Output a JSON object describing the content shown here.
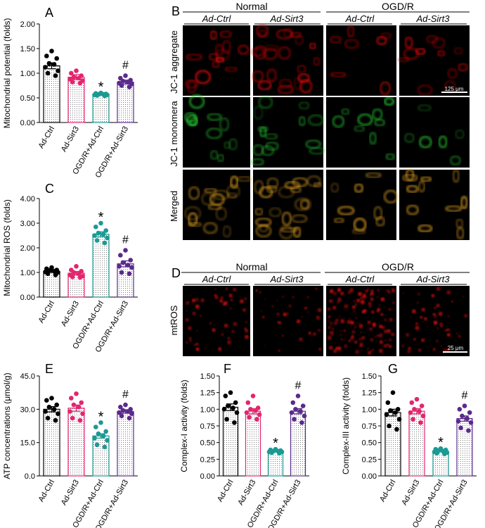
{
  "groups": [
    "Ad-Ctrl",
    "Ad-Sirt3",
    "OGD/R+Ad-Ctrl",
    "OGD/R+Ad-Sirt3"
  ],
  "colors": {
    "black": "#000000",
    "pink": "#e2266e",
    "teal": "#1b9a94",
    "purple": "#5b2a8c",
    "red": "#e01010",
    "green": "#28c830"
  },
  "chart_data": [
    {
      "type": "bar",
      "letter": "A",
      "ylabel": "Mitochondrial potential (folds)",
      "ylim": [
        0,
        2
      ],
      "yticks": [
        0,
        0.5,
        1.0,
        1.5,
        2.0
      ],
      "tick_labels": [
        "0.00",
        "0.50",
        "1.00",
        "1.50",
        "2.00"
      ],
      "categories": [
        "Ad-Ctrl",
        "Ad-Sirt3",
        "OGD/R+Ad-Ctrl",
        "OGD/R+Ad-Sirt3"
      ],
      "values": [
        1.15,
        0.92,
        0.57,
        0.82
      ],
      "errors": [
        0.06,
        0.05,
        0.02,
        0.04
      ],
      "points": [
        [
          1.45,
          1.35,
          1.3,
          1.2,
          1.18,
          1.12,
          1.05,
          1.0,
          0.95
        ],
        [
          1.05,
          1.0,
          0.95,
          0.92,
          0.9,
          0.88,
          0.85,
          0.82,
          0.8
        ],
        [
          0.6,
          0.59,
          0.58,
          0.57,
          0.57,
          0.56,
          0.56,
          0.55,
          0.54
        ],
        [
          0.95,
          0.9,
          0.86,
          0.84,
          0.82,
          0.8,
          0.78,
          0.75,
          0.72
        ]
      ],
      "annotations": [
        "",
        "",
        "*",
        "#"
      ]
    },
    {
      "type": "bar",
      "letter": "C",
      "ylabel": "Mitochondrial ROS (folds)",
      "ylim": [
        0,
        4
      ],
      "yticks": [
        0,
        1,
        2,
        3,
        4
      ],
      "tick_labels": [
        "0.00",
        "1.00",
        "2.00",
        "3.00",
        "4.00"
      ],
      "categories": [
        "Ad-Ctrl",
        "Ad-Sirt3",
        "OGD/R+Ad-Ctrl",
        "OGD/R+Ad-Sirt3"
      ],
      "values": [
        1.05,
        0.97,
        2.55,
        1.35
      ],
      "errors": [
        0.05,
        0.07,
        0.1,
        0.12
      ],
      "points": [
        [
          1.2,
          1.15,
          1.1,
          1.08,
          1.05,
          1.02,
          1.0,
          0.95,
          0.9
        ],
        [
          1.25,
          1.1,
          1.05,
          1.0,
          0.95,
          0.9,
          0.85,
          0.82,
          0.8
        ],
        [
          3.0,
          2.85,
          2.7,
          2.6,
          2.55,
          2.5,
          2.4,
          2.3,
          2.2
        ],
        [
          1.9,
          1.7,
          1.5,
          1.4,
          1.3,
          1.25,
          1.2,
          1.0,
          0.95
        ]
      ],
      "annotations": [
        "",
        "",
        "*",
        "#"
      ]
    },
    {
      "type": "bar",
      "letter": "E",
      "ylabel": "ATP concentrations (μmol/g)",
      "ylim": [
        0,
        45
      ],
      "yticks": [
        0,
        15,
        30,
        45
      ],
      "tick_labels": [
        "0.0",
        "15.0",
        "30.0",
        "45.0"
      ],
      "categories": [
        "Ad-Ctrl",
        "Ad-Sirt3",
        "OGD/R+Ad-Ctrl",
        "OGD/R+Ad-Sirt3"
      ],
      "values": [
        30,
        30.5,
        18,
        29
      ],
      "errors": [
        1.2,
        1.4,
        1.0,
        0.8
      ],
      "points": [
        [
          35,
          34,
          32,
          31,
          30,
          29,
          28,
          26,
          25
        ],
        [
          37,
          35,
          33,
          32,
          31,
          29,
          28,
          26,
          25
        ],
        [
          24,
          22,
          20,
          19,
          18,
          17,
          16,
          14,
          13
        ],
        [
          32,
          31,
          30,
          29.5,
          29,
          28.5,
          28,
          27,
          26
        ]
      ],
      "annotations": [
        "",
        "",
        "*",
        "#"
      ]
    },
    {
      "type": "bar",
      "letter": "F",
      "ylabel": "Complex-I activity (folds)",
      "ylim": [
        0,
        1.5
      ],
      "yticks": [
        0,
        0.25,
        0.5,
        0.75,
        1.0,
        1.25,
        1.5
      ],
      "tick_labels": [
        "0.00",
        "0.25",
        "0.50",
        "0.75",
        "1.00",
        "1.25",
        "1.50"
      ],
      "categories": [
        "Ad-Ctrl",
        "Ad-Sirt3",
        "OGD/R+Ad-Ctrl",
        "OGD/R+Ad-Sirt3"
      ],
      "values": [
        1.03,
        0.97,
        0.37,
        0.97
      ],
      "errors": [
        0.05,
        0.04,
        0.01,
        0.04
      ],
      "points": [
        [
          1.25,
          1.2,
          1.1,
          1.05,
          1.02,
          1.0,
          0.95,
          0.85,
          0.8
        ],
        [
          1.2,
          1.1,
          1.02,
          1.0,
          0.98,
          0.95,
          0.92,
          0.88,
          0.85
        ],
        [
          0.4,
          0.39,
          0.38,
          0.37,
          0.37,
          0.36,
          0.36,
          0.35,
          0.34
        ],
        [
          1.2,
          1.1,
          1.05,
          1.0,
          0.97,
          0.95,
          0.9,
          0.85,
          0.8
        ]
      ],
      "annotations": [
        "",
        "",
        "*",
        "#"
      ]
    },
    {
      "type": "bar",
      "letter": "G",
      "ylabel": "Complex-III activity (folds)",
      "ylim": [
        0,
        1.5
      ],
      "yticks": [
        0,
        0.25,
        0.5,
        0.75,
        1.0,
        1.25,
        1.5
      ],
      "tick_labels": [
        "0.00",
        "0.25",
        "0.50",
        "0.75",
        "1.00",
        "1.25",
        "1.50"
      ],
      "categories": [
        "Ad-Ctrl",
        "Ad-Sirt3",
        "OGD/R+Ad-Ctrl",
        "OGD/R+Ad-Sirt3"
      ],
      "values": [
        0.95,
        0.97,
        0.37,
        0.86
      ],
      "errors": [
        0.05,
        0.04,
        0.01,
        0.04
      ],
      "points": [
        [
          1.25,
          1.1,
          1.0,
          0.98,
          0.95,
          0.92,
          0.85,
          0.75,
          0.7
        ],
        [
          1.15,
          1.1,
          1.05,
          1.0,
          0.97,
          0.95,
          0.9,
          0.85,
          0.8
        ],
        [
          0.41,
          0.4,
          0.39,
          0.38,
          0.37,
          0.36,
          0.35,
          0.34,
          0.33
        ],
        [
          1.05,
          1.0,
          0.95,
          0.9,
          0.86,
          0.82,
          0.8,
          0.72,
          0.68
        ]
      ],
      "annotations": [
        "",
        "",
        "*",
        "#"
      ]
    }
  ],
  "panel_b": {
    "letter": "B",
    "condition_normal": "Normal",
    "condition_ogdr": "OGD/R",
    "columns": [
      "Ad-Ctrl",
      "Ad-Sirt3",
      "Ad-Ctrl",
      "Ad-Sirt3"
    ],
    "rows": [
      "JC-1 aggregate",
      "JC-1 monomera",
      "Merged"
    ],
    "scale_bar": "125 μm"
  },
  "panel_d": {
    "letter": "D",
    "condition_normal": "Normal",
    "condition_ogdr": "OGD/R",
    "columns": [
      "Ad-Ctrl",
      "Ad-Sirt3",
      "Ad-Ctrl",
      "Ad-Sirt3"
    ],
    "row": "mtROS",
    "scale_bar": "25 μm"
  }
}
